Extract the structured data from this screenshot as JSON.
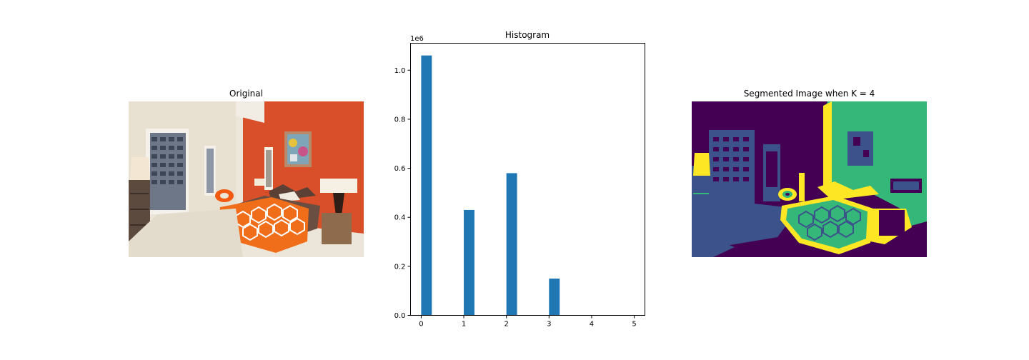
{
  "panels": {
    "left_title": "Original",
    "middle_title": "Histogram",
    "right_title": "Segmented Image when K = 4"
  },
  "chart_data": {
    "type": "bar",
    "title": "Histogram",
    "xlabel": "",
    "ylabel": "",
    "y_scale_label": "1e6",
    "x": [
      0,
      1,
      2,
      3
    ],
    "values": [
      1.06,
      0.43,
      0.58,
      0.15
    ],
    "xlim": [
      -0.25,
      5.25
    ],
    "ylim": [
      0,
      1.11
    ],
    "x_ticks": [
      0,
      1,
      2,
      3,
      4,
      5
    ],
    "y_ticks": [
      0.0,
      0.2,
      0.4,
      0.6,
      0.8,
      1.0
    ],
    "y_tick_labels": [
      "0.0",
      "0.2",
      "0.4",
      "0.6",
      "0.8",
      "1.0"
    ],
    "bar_color": "#1f77b4",
    "grid": false
  },
  "colors": {
    "viridis_purple": "#440154",
    "viridis_blue": "#3b528b",
    "viridis_green": "#35b779",
    "viridis_yellow": "#fde725",
    "wall_orange": "#d84f2a",
    "blanket_orange": "#f26a1b"
  }
}
